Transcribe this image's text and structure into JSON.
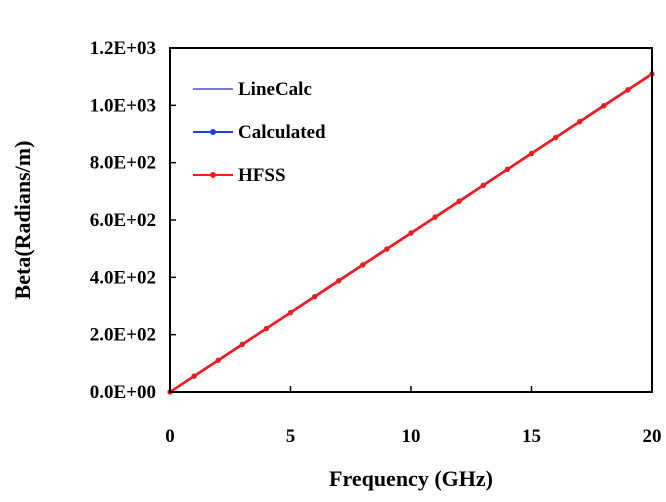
{
  "chart_data": {
    "type": "line",
    "title": "",
    "xlabel": "Frequency (GHz)",
    "ylabel": "Beta(Radians/m)",
    "xlim": [
      0,
      20
    ],
    "ylim": [
      0,
      1200
    ],
    "x_ticks": [
      "0",
      "5",
      "10",
      "15",
      "20"
    ],
    "y_ticks": [
      "0.0E+00",
      "2.0E+02",
      "4.0E+02",
      "6.0E+02",
      "8.0E+02",
      "1.0E+03",
      "1.2E+03"
    ],
    "grid": false,
    "legend_position": "top-left",
    "x": [
      0,
      1,
      2,
      3,
      4,
      5,
      6,
      7,
      8,
      9,
      10,
      11,
      12,
      13,
      14,
      15,
      16,
      17,
      18,
      19,
      20
    ],
    "series": [
      {
        "name": "LineCalc",
        "color": "#7b7bd6",
        "marker": "none",
        "values": [
          0,
          55.5,
          111,
          166.5,
          222,
          277.5,
          333,
          388.5,
          444,
          499.5,
          555,
          610.5,
          666,
          721.5,
          777,
          832.5,
          888,
          943.5,
          999,
          1054.5,
          1110
        ]
      },
      {
        "name": "Calculated",
        "color": "#1f3fe0",
        "marker": "circle",
        "values": [
          0,
          55.5,
          111,
          166.5,
          222,
          277.5,
          333,
          388.5,
          444,
          499.5,
          555,
          610.5,
          666,
          721.5,
          777,
          832.5,
          888,
          943.5,
          999,
          1054.5,
          1110
        ]
      },
      {
        "name": "HFSS",
        "color": "#ff1a1a",
        "marker": "circle",
        "values": [
          0,
          55,
          110,
          165.5,
          221,
          276.5,
          332,
          387.5,
          443,
          498.5,
          554,
          609.5,
          665,
          720.5,
          776,
          831.5,
          887,
          942.5,
          998,
          1053.5,
          1109
        ]
      }
    ]
  }
}
